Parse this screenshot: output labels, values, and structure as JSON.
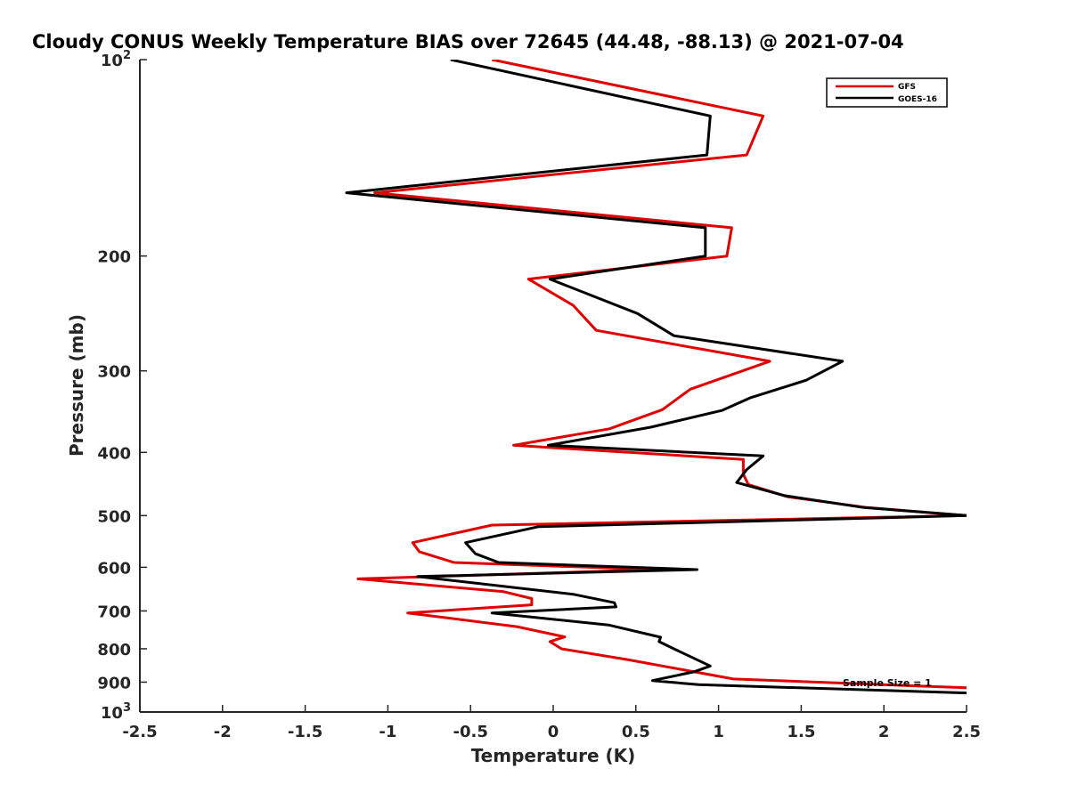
{
  "chart_data": {
    "type": "line",
    "title": "Cloudy CONUS Weekly Temperature BIAS over 72645 (44.48, -88.13) @ 2021-07-04",
    "xlabel": "Temperature (K)",
    "ylabel": "Pressure (mb)",
    "xlim": [
      -2.5,
      2.5
    ],
    "ylim": [
      100,
      1000
    ],
    "y_scale": "log",
    "y_reversed": true,
    "grid": false,
    "legend_position": "top-right",
    "annotation": "Sample Size = 1",
    "x_ticks": [
      "-2.5",
      "-2",
      "-1.5",
      "-1",
      "-0.5",
      "0",
      "0.5",
      "1",
      "1.5",
      "2",
      "2.5"
    ],
    "y_ticks": [
      {
        "value": 100,
        "label": "10",
        "sup": "2"
      },
      {
        "value": 200,
        "label": "200",
        "sup": ""
      },
      {
        "value": 300,
        "label": "300",
        "sup": ""
      },
      {
        "value": 400,
        "label": "400",
        "sup": ""
      },
      {
        "value": 500,
        "label": "500",
        "sup": ""
      },
      {
        "value": 600,
        "label": "600",
        "sup": ""
      },
      {
        "value": 700,
        "label": "700",
        "sup": ""
      },
      {
        "value": 800,
        "label": "800",
        "sup": ""
      },
      {
        "value": 900,
        "label": "900",
        "sup": ""
      },
      {
        "value": 1000,
        "label": "10",
        "sup": "3"
      }
    ],
    "series": [
      {
        "name": "GFS",
        "color": "#e00000",
        "points": [
          [
            -0.37,
            100
          ],
          [
            1.27,
            122
          ],
          [
            1.17,
            140
          ],
          [
            -1.08,
            160
          ],
          [
            1.08,
            181
          ],
          [
            1.05,
            200
          ],
          [
            -0.15,
            217
          ],
          [
            0.12,
            238
          ],
          [
            0.26,
            260
          ],
          [
            1.31,
            290
          ],
          [
            0.83,
            320
          ],
          [
            0.66,
            344
          ],
          [
            0.34,
            368
          ],
          [
            -0.24,
            390
          ],
          [
            1.15,
            410
          ],
          [
            1.15,
            432
          ],
          [
            1.18,
            448
          ],
          [
            1.42,
            468
          ],
          [
            1.9,
            486
          ],
          [
            2.5,
            500
          ],
          [
            -0.37,
            517
          ],
          [
            -0.85,
            550
          ],
          [
            -0.81,
            568
          ],
          [
            -0.6,
            590
          ],
          [
            0.62,
            605
          ],
          [
            -1.18,
            625
          ],
          [
            -0.3,
            654
          ],
          [
            -0.13,
            670
          ],
          [
            -0.13,
            685
          ],
          [
            -0.88,
            705
          ],
          [
            -0.22,
            740
          ],
          [
            0.07,
            767
          ],
          [
            -0.02,
            780
          ],
          [
            0.05,
            800
          ],
          [
            0.46,
            832
          ],
          [
            1.09,
            890
          ],
          [
            2.5,
            918
          ]
        ]
      },
      {
        "name": "GOES-16",
        "color": "#000000",
        "points": [
          [
            -0.62,
            100
          ],
          [
            0.95,
            122
          ],
          [
            0.93,
            140
          ],
          [
            -1.25,
            160
          ],
          [
            0.92,
            181
          ],
          [
            0.92,
            200
          ],
          [
            -0.02,
            217
          ],
          [
            0.51,
            245
          ],
          [
            0.73,
            265
          ],
          [
            1.75,
            290
          ],
          [
            1.53,
            310
          ],
          [
            1.19,
            330
          ],
          [
            1.02,
            345
          ],
          [
            0.59,
            366
          ],
          [
            -0.03,
            390
          ],
          [
            1.27,
            405
          ],
          [
            1.17,
            425
          ],
          [
            1.11,
            445
          ],
          [
            1.4,
            466
          ],
          [
            1.88,
            486
          ],
          [
            2.5,
            500
          ],
          [
            -0.09,
            520
          ],
          [
            -0.53,
            550
          ],
          [
            -0.47,
            572
          ],
          [
            -0.33,
            590
          ],
          [
            0.87,
            605
          ],
          [
            -0.82,
            620
          ],
          [
            0.12,
            660
          ],
          [
            0.37,
            680
          ],
          [
            0.38,
            690
          ],
          [
            -0.37,
            705
          ],
          [
            0.34,
            736
          ],
          [
            0.65,
            768
          ],
          [
            0.64,
            780
          ],
          [
            0.73,
            800
          ],
          [
            0.95,
            850
          ],
          [
            0.85,
            868
          ],
          [
            0.6,
            895
          ],
          [
            0.88,
            908
          ],
          [
            2.5,
            935
          ]
        ]
      }
    ]
  }
}
